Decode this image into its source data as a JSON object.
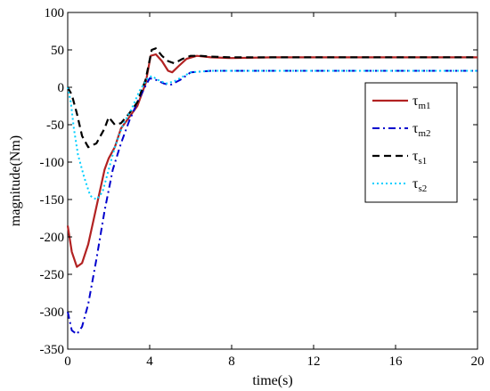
{
  "chart_data": {
    "type": "line",
    "title": "",
    "xlabel": "time(s)",
    "ylabel": "magnitude(Nm)",
    "xlim": [
      0,
      20
    ],
    "ylim": [
      -350,
      100
    ],
    "xticks": [
      0,
      4,
      8,
      12,
      16,
      20
    ],
    "yticks": [
      100,
      50,
      0,
      -50,
      -100,
      -150,
      -200,
      -250,
      -300,
      -350
    ],
    "grid": false,
    "legend_position": "right",
    "series": [
      {
        "name": "τm1",
        "symbol": "τ",
        "subscript": "m1",
        "color": "#b22222",
        "dash": "solid",
        "width": 2.2,
        "x": [
          0,
          0.2,
          0.45,
          0.7,
          1.0,
          1.4,
          1.8,
          2.0,
          2.3,
          2.6,
          3.0,
          3.4,
          3.8,
          4.05,
          4.3,
          4.6,
          4.9,
          5.1,
          5.4,
          5.8,
          6.3,
          7,
          8,
          10,
          12,
          14,
          16,
          18,
          20
        ],
        "y": [
          -185,
          -220,
          -240,
          -235,
          -210,
          -160,
          -110,
          -95,
          -80,
          -55,
          -40,
          -25,
          5,
          42,
          44,
          35,
          22,
          20,
          28,
          38,
          42,
          40,
          39,
          40,
          40,
          40,
          40,
          40,
          40
        ]
      },
      {
        "name": "τm2",
        "symbol": "τ",
        "subscript": "m2",
        "color": "#0000cd",
        "dash": "dashdot",
        "width": 2,
        "x": [
          0,
          0.2,
          0.45,
          0.7,
          1.0,
          1.4,
          1.8,
          2.2,
          2.6,
          3.0,
          3.4,
          3.8,
          4.0,
          4.3,
          4.7,
          5.0,
          5.5,
          6,
          7,
          8,
          10,
          12,
          14,
          16,
          18,
          20
        ],
        "y": [
          -300,
          -325,
          -330,
          -320,
          -290,
          -230,
          -165,
          -110,
          -75,
          -45,
          -20,
          2,
          12,
          10,
          5,
          3,
          10,
          20,
          22,
          22,
          22,
          22,
          22,
          22,
          22,
          22
        ]
      },
      {
        "name": "τs1",
        "symbol": "τ",
        "subscript": "s1",
        "color": "#000000",
        "dash": "dashed",
        "width": 2.2,
        "x": [
          0,
          0.2,
          0.45,
          0.7,
          1.0,
          1.4,
          1.8,
          2.0,
          2.3,
          2.6,
          3.0,
          3.4,
          3.8,
          4.1,
          4.3,
          4.6,
          4.9,
          5.2,
          5.6,
          6.0,
          6.5,
          7,
          8,
          10,
          12,
          14,
          16,
          18,
          20
        ],
        "y": [
          0,
          -10,
          -35,
          -65,
          -80,
          -75,
          -55,
          -40,
          -50,
          -48,
          -35,
          -20,
          10,
          50,
          52,
          42,
          35,
          32,
          38,
          42,
          42,
          41,
          40,
          40,
          40,
          40,
          40,
          40,
          40
        ]
      },
      {
        "name": "τs2",
        "symbol": "τ",
        "subscript": "s2",
        "color": "#00cfff",
        "dash": "dotted",
        "width": 2,
        "x": [
          0,
          0.15,
          0.3,
          0.5,
          0.8,
          1.1,
          1.4,
          1.7,
          2.0,
          2.3,
          2.7,
          3.1,
          3.5,
          3.9,
          4.1,
          4.4,
          4.8,
          5.2,
          6,
          7,
          8,
          10,
          12,
          14,
          16,
          18,
          20
        ],
        "y": [
          0,
          -20,
          -55,
          -90,
          -120,
          -145,
          -150,
          -140,
          -110,
          -80,
          -50,
          -30,
          -5,
          12,
          15,
          10,
          5,
          8,
          20,
          22,
          22,
          22,
          22,
          22,
          22,
          22,
          22
        ]
      }
    ]
  }
}
